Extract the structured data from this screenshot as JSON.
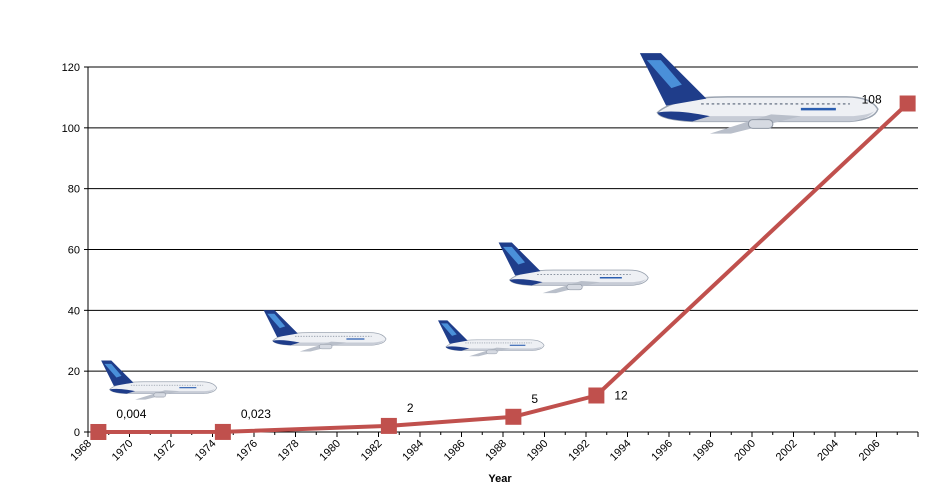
{
  "chart_data": {
    "type": "line",
    "title": "",
    "xlabel": "Year",
    "ylabel": "",
    "ylim": [
      0,
      120
    ],
    "xlim": [
      1968,
      2008
    ],
    "grid": true,
    "y_ticks": [
      "0",
      "20",
      "40",
      "60",
      "80",
      "100",
      "120"
    ],
    "x_ticks": [
      "1968",
      "1970",
      "1972",
      "1974",
      "1976",
      "1978",
      "1980",
      "1982",
      "1984",
      "1986",
      "1988",
      "1990",
      "1992",
      "1994",
      "1996",
      "1998",
      "2000",
      "2002",
      "2004",
      "2006"
    ],
    "series": [
      {
        "color": "#c0504d",
        "points": [
          {
            "x": 1968.5,
            "y": 0.004,
            "label": "0,004"
          },
          {
            "x": 1974.5,
            "y": 0.023,
            "label": "0,023"
          },
          {
            "x": 1982.5,
            "y": 2,
            "label": "2"
          },
          {
            "x": 1988.5,
            "y": 5,
            "label": "5"
          },
          {
            "x": 1992.5,
            "y": 12,
            "label": "12"
          },
          {
            "x": 2007.5,
            "y": 108,
            "label": "108"
          }
        ]
      }
    ],
    "images": [
      {
        "name": "aircraft-a300",
        "x": 1971.5,
        "y": 14
      },
      {
        "name": "aircraft-a320-long",
        "x": 1979.5,
        "y": 30
      },
      {
        "name": "aircraft-a320",
        "x": 1987.5,
        "y": 28
      },
      {
        "name": "aircraft-a330",
        "x": 1991.5,
        "y": 50
      },
      {
        "name": "aircraft-a380",
        "x": 2000.5,
        "y": 105
      }
    ]
  }
}
